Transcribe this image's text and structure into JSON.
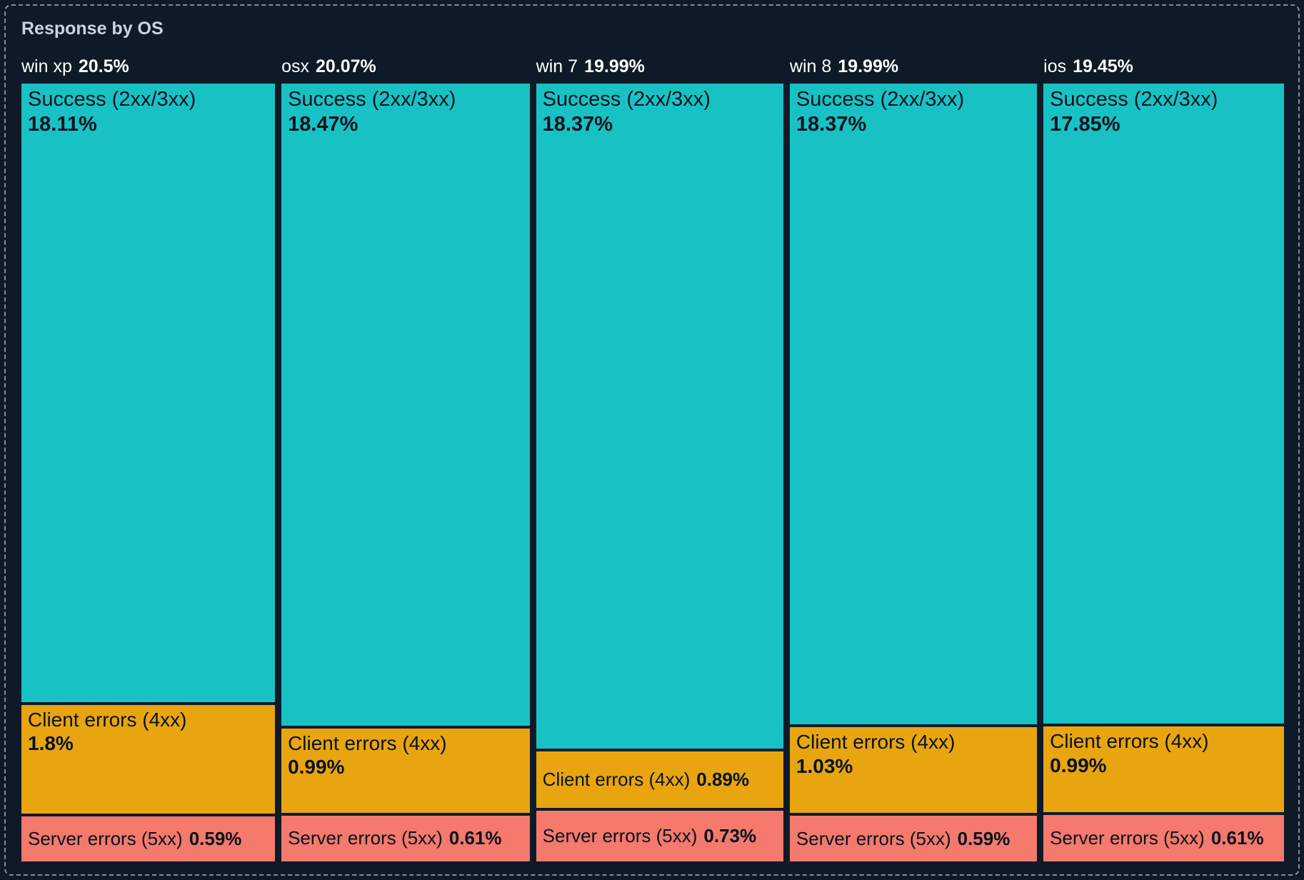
{
  "panel": {
    "title": "Response by OS"
  },
  "colors": {
    "background": "#0E1A28",
    "panel_border": "#7C90A6",
    "title_text": "#C9D4E0",
    "header_text": "#FFFFFF",
    "segment_text": "#07131F",
    "success": "#18C2C4",
    "client_errors": "#E9A50F",
    "server_errors": "#F5796C"
  },
  "chart_data": {
    "type": "treemap",
    "title": "Response by OS",
    "legend_position": "none",
    "orientation": "columns",
    "units": "%",
    "groups": [
      {
        "label": "win xp",
        "total": 20.5,
        "total_display": "20.5%",
        "segments": [
          {
            "name": "Success (2xx/3xx)",
            "value": 18.11,
            "display": "18.11%",
            "category": "success"
          },
          {
            "name": "Client errors (4xx)",
            "value": 1.8,
            "display": "1.8%",
            "category": "client_errors"
          },
          {
            "name": "Server errors (5xx)",
            "value": 0.59,
            "display": "0.59%",
            "category": "server_errors"
          }
        ]
      },
      {
        "label": "osx",
        "total": 20.07,
        "total_display": "20.07%",
        "segments": [
          {
            "name": "Success (2xx/3xx)",
            "value": 18.47,
            "display": "18.47%",
            "category": "success"
          },
          {
            "name": "Client errors (4xx)",
            "value": 0.99,
            "display": "0.99%",
            "category": "client_errors"
          },
          {
            "name": "Server errors (5xx)",
            "value": 0.61,
            "display": "0.61%",
            "category": "server_errors"
          }
        ]
      },
      {
        "label": "win 7",
        "total": 19.99,
        "total_display": "19.99%",
        "segments": [
          {
            "name": "Success (2xx/3xx)",
            "value": 18.37,
            "display": "18.37%",
            "category": "success"
          },
          {
            "name": "Client errors (4xx)",
            "value": 0.89,
            "display": "0.89%",
            "category": "client_errors"
          },
          {
            "name": "Server errors (5xx)",
            "value": 0.73,
            "display": "0.73%",
            "category": "server_errors"
          }
        ]
      },
      {
        "label": "win 8",
        "total": 19.99,
        "total_display": "19.99%",
        "segments": [
          {
            "name": "Success (2xx/3xx)",
            "value": 18.37,
            "display": "18.37%",
            "category": "success"
          },
          {
            "name": "Client errors (4xx)",
            "value": 1.03,
            "display": "1.03%",
            "category": "client_errors"
          },
          {
            "name": "Server errors (5xx)",
            "value": 0.59,
            "display": "0.59%",
            "category": "server_errors"
          }
        ]
      },
      {
        "label": "ios",
        "total": 19.45,
        "total_display": "19.45%",
        "segments": [
          {
            "name": "Success (2xx/3xx)",
            "value": 17.85,
            "display": "17.85%",
            "category": "success"
          },
          {
            "name": "Client errors (4xx)",
            "value": 0.99,
            "display": "0.99%",
            "category": "client_errors"
          },
          {
            "name": "Server errors (5xx)",
            "value": 0.61,
            "display": "0.61%",
            "category": "server_errors"
          }
        ]
      }
    ]
  }
}
